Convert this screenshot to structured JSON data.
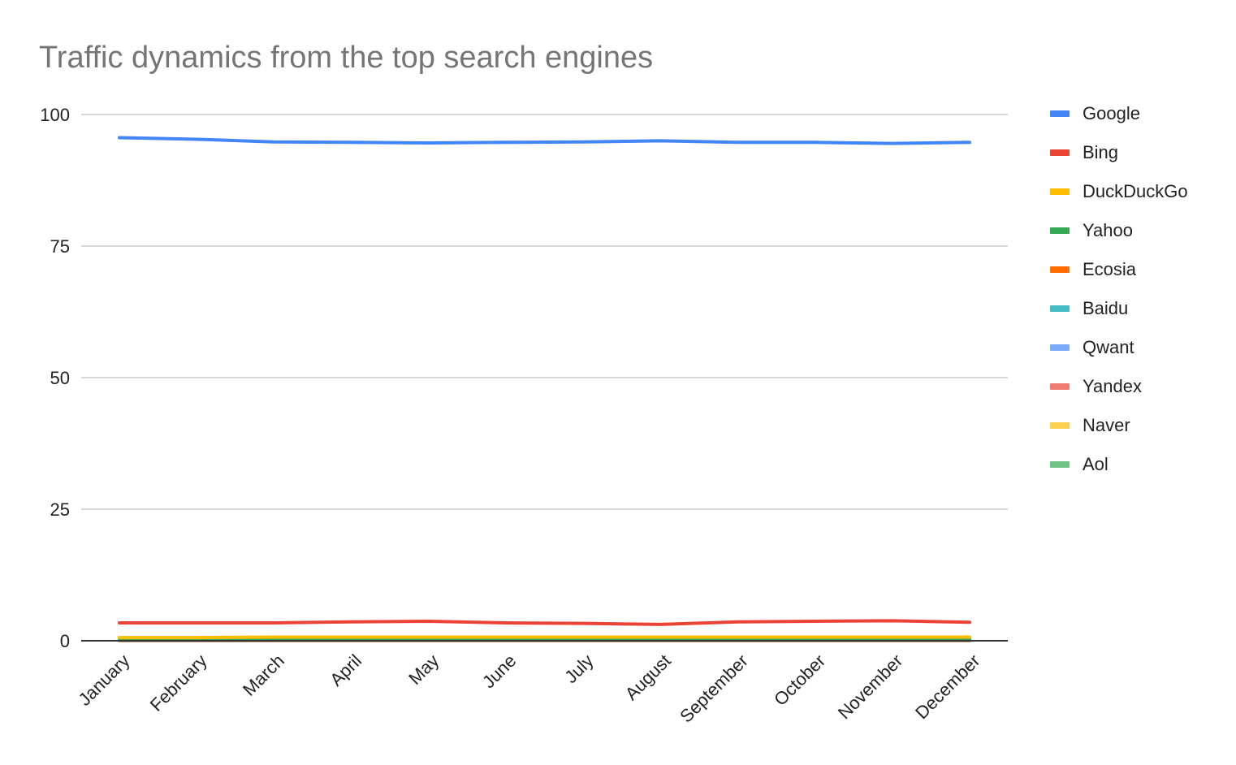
{
  "chart_data": {
    "type": "line",
    "title": "Traffic dynamics from the top search engines",
    "xlabel": "",
    "ylabel": "",
    "ylim": [
      0,
      100
    ],
    "yticks": [
      "0",
      "25",
      "50",
      "75",
      "100"
    ],
    "categories": [
      "January",
      "February",
      "March",
      "April",
      "May",
      "June",
      "July",
      "August",
      "September",
      "October",
      "November",
      "December"
    ],
    "grid": true,
    "legend_position": "right",
    "series": [
      {
        "name": "Google",
        "color": "#4285F4",
        "values": [
          95.6,
          95.3,
          94.8,
          94.7,
          94.6,
          94.7,
          94.8,
          95.0,
          94.7,
          94.7,
          94.5,
          94.7
        ]
      },
      {
        "name": "Bing",
        "color": "#EA4335",
        "values": [
          3.4,
          3.4,
          3.4,
          3.6,
          3.7,
          3.4,
          3.3,
          3.1,
          3.6,
          3.7,
          3.8,
          3.5
        ]
      },
      {
        "name": "DuckDuckGo",
        "color": "#FBBC04",
        "values": [
          0.6,
          0.6,
          0.7,
          0.7,
          0.7,
          0.7,
          0.7,
          0.7,
          0.7,
          0.7,
          0.7,
          0.7
        ]
      },
      {
        "name": "Yahoo",
        "color": "#34A853",
        "values": [
          0.2,
          0.2,
          0.3,
          0.3,
          0.3,
          0.3,
          0.3,
          0.3,
          0.3,
          0.3,
          0.3,
          0.3
        ]
      },
      {
        "name": "Ecosia",
        "color": "#FF6D01",
        "values": [
          0.1,
          0.1,
          0.1,
          0.1,
          0.1,
          0.1,
          0.1,
          0.1,
          0.1,
          0.1,
          0.1,
          0.1
        ]
      },
      {
        "name": "Baidu",
        "color": "#46BDC6",
        "values": [
          0.1,
          0.1,
          0.1,
          0.1,
          0.1,
          0.1,
          0.1,
          0.1,
          0.1,
          0.1,
          0.1,
          0.1
        ]
      },
      {
        "name": "Qwant",
        "color": "#7BAAF7",
        "values": [
          0.05,
          0.05,
          0.05,
          0.05,
          0.05,
          0.05,
          0.05,
          0.05,
          0.05,
          0.05,
          0.05,
          0.05
        ]
      },
      {
        "name": "Yandex",
        "color": "#F07B72",
        "values": [
          0.05,
          0.05,
          0.05,
          0.05,
          0.05,
          0.05,
          0.05,
          0.05,
          0.05,
          0.05,
          0.05,
          0.05
        ]
      },
      {
        "name": "Naver",
        "color": "#FCD04F",
        "values": [
          0.02,
          0.02,
          0.02,
          0.02,
          0.02,
          0.02,
          0.02,
          0.02,
          0.02,
          0.02,
          0.02,
          0.02
        ]
      },
      {
        "name": "Aol",
        "color": "#71C287",
        "values": [
          0.02,
          0.02,
          0.02,
          0.02,
          0.02,
          0.02,
          0.02,
          0.02,
          0.02,
          0.02,
          0.02,
          0.02
        ]
      }
    ]
  }
}
